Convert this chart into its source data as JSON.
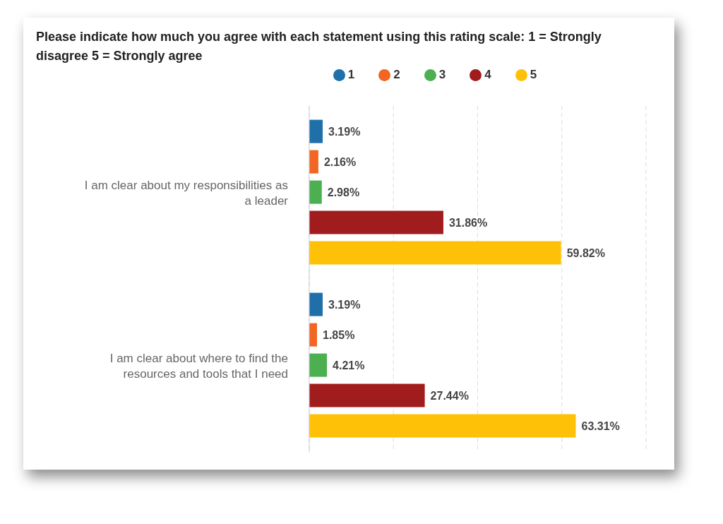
{
  "chart_data": {
    "type": "bar",
    "orientation": "horizontal",
    "title": "Please indicate how much you agree with each statement using this rating scale: 1 = Strongly disagree 5 = Strongly agree",
    "categories": [
      "I am clear about my responsibilities as a leader",
      "I am clear about where to find the resources and tools that I need"
    ],
    "series": [
      {
        "name": "1",
        "color": "#1f6fa8",
        "values": [
          3.19,
          3.19
        ],
        "value_labels": [
          "3.19%",
          "3.19%"
        ]
      },
      {
        "name": "2",
        "color": "#f26522",
        "values": [
          2.16,
          1.85
        ],
        "value_labels": [
          "2.16%",
          "1.85%"
        ]
      },
      {
        "name": "3",
        "color": "#4caf50",
        "values": [
          2.98,
          4.21
        ],
        "value_labels": [
          "2.98%",
          "4.21%"
        ]
      },
      {
        "name": "4",
        "color": "#a11c1c",
        "values": [
          31.86,
          27.44
        ],
        "value_labels": [
          "31.86%",
          "27.44%"
        ]
      },
      {
        "name": "5",
        "color": "#ffc107",
        "values": [
          59.82,
          63.31
        ],
        "value_labels": [
          "59.82%",
          "63.31%"
        ]
      }
    ],
    "grid": "x",
    "legend": "top",
    "tick_labels": "y"
  }
}
